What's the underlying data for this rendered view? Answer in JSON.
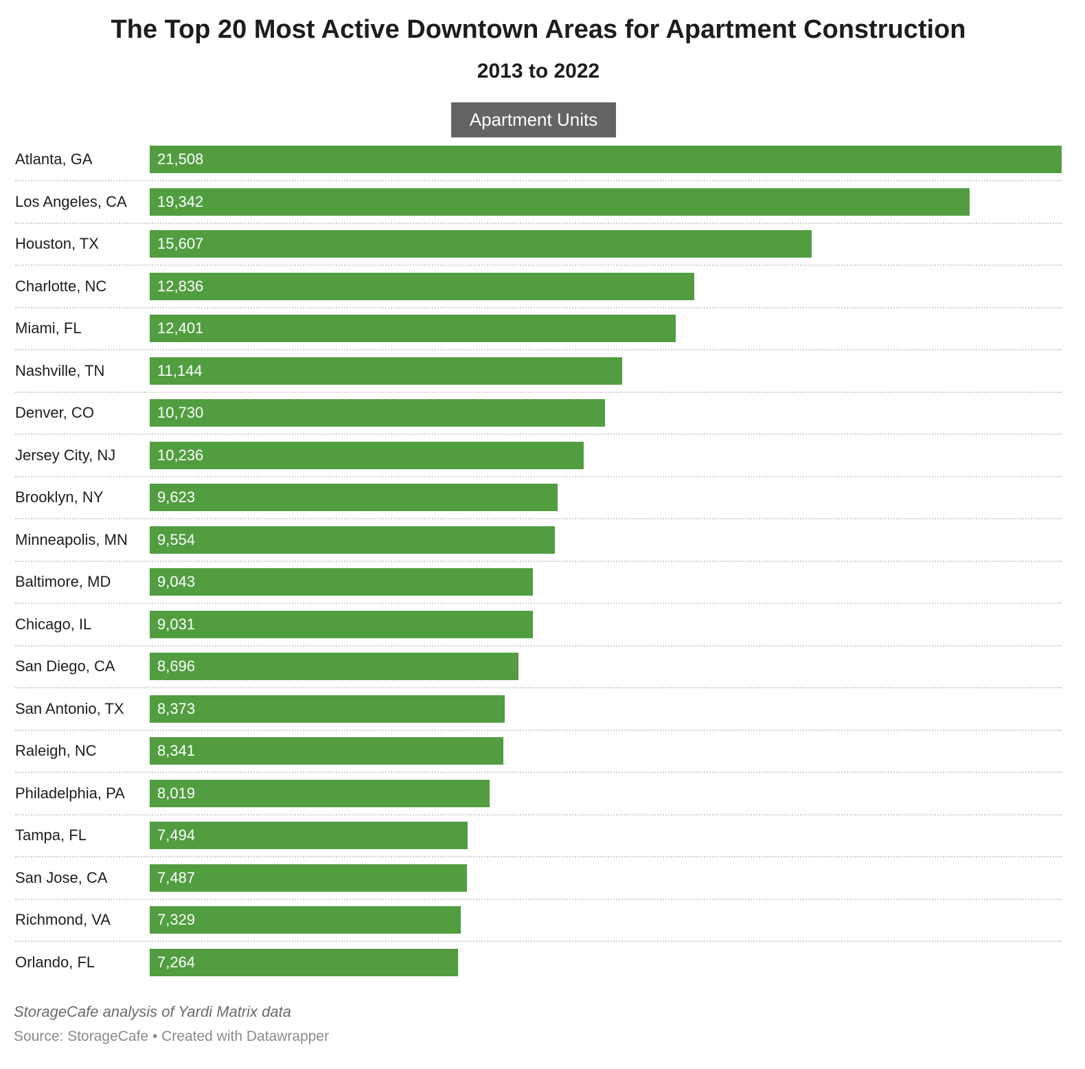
{
  "chart_data": {
    "type": "bar",
    "orientation": "horizontal",
    "title": "The Top 20 Most Active Downtown Areas for Apartment Construction",
    "subtitle": "2013 to 2022",
    "legend": [
      "Apartment Units"
    ],
    "legend_placement": "top-center",
    "categories": [
      "Atlanta, GA",
      "Los Angeles, CA",
      "Houston, TX",
      "Charlotte, NC",
      "Miami, FL",
      "Nashville, TN",
      "Denver, CO",
      "Jersey City, NJ",
      "Brooklyn, NY",
      "Minneapolis, MN",
      "Baltimore, MD",
      "Chicago, IL",
      "San Diego, CA",
      "San Antonio, TX",
      "Raleigh, NC",
      "Philadelphia, PA",
      "Tampa, FL",
      "San Jose, CA",
      "Richmond, VA",
      "Orlando, FL"
    ],
    "values": [
      21508,
      19342,
      15607,
      12836,
      12401,
      11144,
      10730,
      10236,
      9623,
      9554,
      9043,
      9031,
      8696,
      8373,
      8341,
      8019,
      7494,
      7487,
      7329,
      7264
    ],
    "value_labels": [
      "21,508",
      "19,342",
      "15,607",
      "12,836",
      "12,401",
      "11,144",
      "10,730",
      "10,236",
      "9,623",
      "9,554",
      "9,043",
      "9,031",
      "8,696",
      "8,373",
      "8,341",
      "8,019",
      "7,494",
      "7,487",
      "7,329",
      "7,264"
    ],
    "xlim": [
      0,
      21508
    ],
    "grid": false,
    "xlabel": "",
    "ylabel": ""
  },
  "colors": {
    "bar": "#519d40",
    "legend": "#646464"
  },
  "footer": {
    "notes": "StorageCafe analysis of Yardi Matrix data",
    "source": "Source: StorageCafe • Created with Datawrapper"
  }
}
